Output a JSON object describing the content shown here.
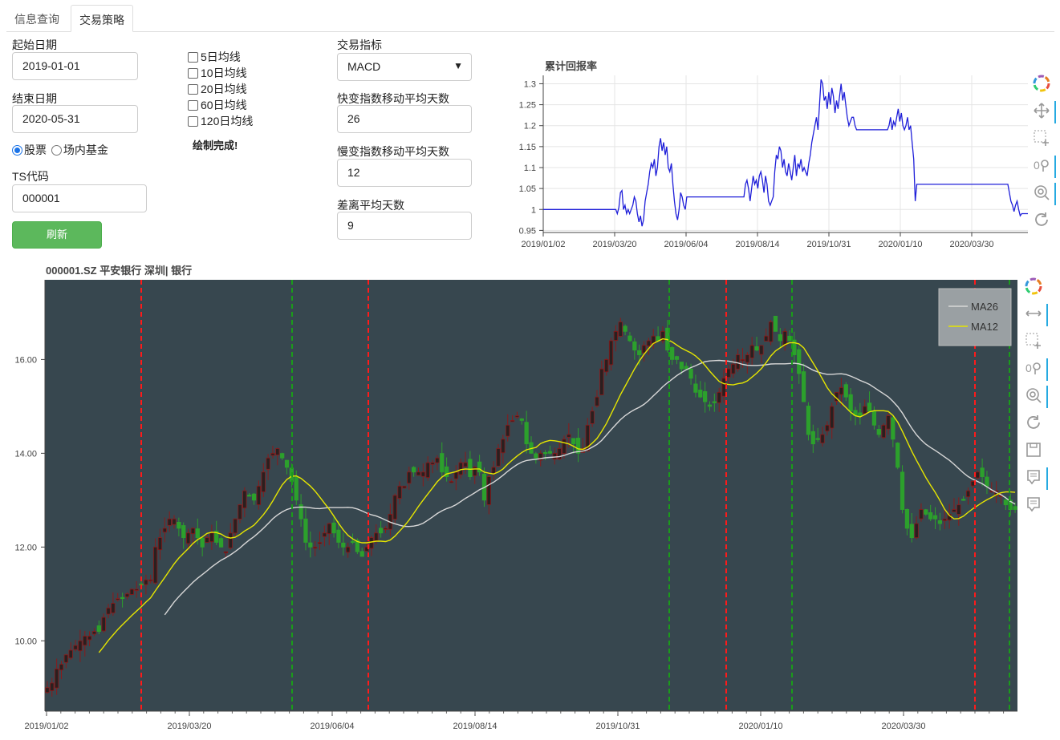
{
  "tabs": [
    {
      "label": "信息查询",
      "active": false
    },
    {
      "label": "交易策略",
      "active": true
    }
  ],
  "form": {
    "start_label": "起始日期",
    "start_value": "2019-01-01",
    "end_label": "结束日期",
    "end_value": "2020-05-31",
    "radio_stock": "股票",
    "radio_fund": "场内基金",
    "ts_label": "TS代码",
    "ts_value": "000001",
    "refresh_label": "刷新",
    "ma_checkboxes": [
      "5日均线",
      "10日均线",
      "20日均线",
      "60日均线",
      "120日均线"
    ],
    "status": "绘制完成!",
    "indicator_label": "交易指标",
    "indicator_value": "MACD",
    "fast_label": "快变指数移动平均天数",
    "fast_value": "26",
    "slow_label": "慢变指数移动平均天数",
    "slow_value": "12",
    "signal_label": "差离平均天数",
    "signal_value": "9"
  },
  "return_chart": {
    "title": "累计回报率"
  },
  "price_chart": {
    "title": "000001.SZ 平安银行 深圳| 银行",
    "legend": [
      "MA26",
      "MA12"
    ]
  },
  "colors": {
    "plot_bg": "#37474f",
    "up": "#8b1a1a",
    "down": "#2ca02c",
    "ma26": "#d8d8d8",
    "ma12": "#e6e600",
    "buy_line": "#ff1a1a",
    "sell_line": "#1a9c1a",
    "return_line": "#1f1fd9",
    "tool_blue": "#26aae1"
  },
  "icons": [
    "bokeh-logo-icon",
    "pan-icon",
    "box-zoom-icon",
    "wheel-zoom-icon",
    "reset-icon",
    "save-icon",
    "hover-icon"
  ],
  "chart_data": [
    {
      "type": "line",
      "title": "累计回报率",
      "x_ticks": [
        "2019/01/02",
        "2019/03/20",
        "2019/06/04",
        "2019/08/14",
        "2019/10/31",
        "2020/01/10",
        "2020/03/30"
      ],
      "y_ticks": [
        0.95,
        1,
        1.05,
        1.1,
        1.15,
        1.2,
        1.25,
        1.3
      ],
      "ylim": [
        0.945,
        1.32
      ],
      "grid": true,
      "series": [
        {
          "values": [
            1,
            1,
            1,
            1,
            1,
            1,
            1,
            1,
            1,
            1,
            1,
            1,
            1,
            1,
            1,
            1,
            1,
            1,
            1,
            1,
            1,
            1,
            1,
            1,
            1,
            1,
            1,
            1,
            1,
            1,
            1,
            1,
            1,
            1,
            1,
            1,
            1,
            1,
            1,
            1,
            1,
            1,
            1,
            1,
            1,
            1,
            1,
            1,
            0.99,
            1.005,
            1.04,
            1.045,
            1.0,
            1.01,
            0.99,
            1.0,
            0.99,
            1.0,
            1.01,
            1.03,
            1.02,
            0.99,
            0.97,
            0.985,
            0.96,
            0.975,
            1.02,
            1.04,
            1.06,
            1.09,
            1.11,
            1.1,
            1.12,
            1.08,
            1.1,
            1.15,
            1.17,
            1.14,
            1.16,
            1.13,
            1.15,
            1.1,
            1.09,
            1.11,
            1.06,
            1.02,
            0.99,
            0.975,
            1.0,
            1.04,
            1.03,
            1.01,
            1.0,
            1.03,
            1.03,
            1.03,
            1.03,
            1.03,
            1.03,
            1.03,
            1.03,
            1.03,
            1.03,
            1.03,
            1.03,
            1.03,
            1.03,
            1.03,
            1.03,
            1.03,
            1.03,
            1.03,
            1.03,
            1.03,
            1.03,
            1.03,
            1.03,
            1.03,
            1.03,
            1.03,
            1.03,
            1.03,
            1.03,
            1.03,
            1.03,
            1.03,
            1.03,
            1.03,
            1.03,
            1.03,
            1.03,
            1.06,
            1.07,
            1.05,
            1.02,
            1.05,
            1.08,
            1.06,
            1.07,
            1.05,
            1.08,
            1.09,
            1.07,
            1.04,
            1.08,
            1.06,
            1.02,
            1.01,
            1.02,
            1.03,
            1.09,
            1.13,
            1.12,
            1.15,
            1.14,
            1.1,
            1.12,
            1.09,
            1.08,
            1.11,
            1.09,
            1.07,
            1.1,
            1.13,
            1.08,
            1.11,
            1.1,
            1.12,
            1.09,
            1.1,
            1.09,
            1.08,
            1.11,
            1.13,
            1.16,
            1.18,
            1.2,
            1.22,
            1.19,
            1.25,
            1.31,
            1.3,
            1.26,
            1.27,
            1.24,
            1.28,
            1.25,
            1.29,
            1.27,
            1.23,
            1.26,
            1.24,
            1.27,
            1.3,
            1.26,
            1.28,
            1.25,
            1.22,
            1.2,
            1.21,
            1.22,
            1.22,
            1.2,
            1.19,
            1.19,
            1.19,
            1.19,
            1.19,
            1.19,
            1.19,
            1.19,
            1.19,
            1.19,
            1.19,
            1.19,
            1.19,
            1.19,
            1.19,
            1.19,
            1.19,
            1.19,
            1.19,
            1.19,
            1.19,
            1.2,
            1.22,
            1.19,
            1.21,
            1.2,
            1.22,
            1.24,
            1.21,
            1.23,
            1.2,
            1.19,
            1.2,
            1.22,
            1.19,
            1.2,
            1.16,
            1.12,
            1.02,
            1.06,
            1.06,
            1.06,
            1.06,
            1.06,
            1.06,
            1.06,
            1.06,
            1.06,
            1.06,
            1.06,
            1.06,
            1.06,
            1.06,
            1.06,
            1.06,
            1.06,
            1.06,
            1.06,
            1.06,
            1.06,
            1.06,
            1.06,
            1.06,
            1.06,
            1.06,
            1.06,
            1.06,
            1.06,
            1.06,
            1.06,
            1.06,
            1.06,
            1.06,
            1.06,
            1.06,
            1.06,
            1.06,
            1.06,
            1.06,
            1.06,
            1.06,
            1.06,
            1.06,
            1.06,
            1.06,
            1.06,
            1.06,
            1.06,
            1.06,
            1.06,
            1.06,
            1.06,
            1.06,
            1.06,
            1.06,
            1.06,
            1.06,
            1.06,
            1.06,
            1.04,
            1.02,
            1.01,
            0.995,
            1.01,
            1.02,
            1.0,
            0.985,
            0.99,
            0.99,
            0.99,
            0.99,
            0.99
          ]
        }
      ]
    },
    {
      "type": "candlestick",
      "title": "000001.SZ 平安银行 深圳| 银行",
      "x_ticks": [
        "2019/01/02",
        "2019/03/20",
        "2019/06/04",
        "2019/08/14",
        "2019/10/31",
        "2020/01/10",
        "2020/03/30"
      ],
      "y_ticks": [
        10.0,
        12.0,
        14.0,
        16.0
      ],
      "ylim": [
        8.5,
        17.7
      ],
      "series": [
        {
          "name": "close",
          "values": [
            9.0,
            9.1,
            9.4,
            9.5,
            9.7,
            9.8,
            9.9,
            10.0,
            10.1,
            10.1,
            10.2,
            10.2,
            10.5,
            10.7,
            10.8,
            10.9,
            10.9,
            11.0,
            11.1,
            11.1,
            11.2,
            11.3,
            11.3,
            12.0,
            12.2,
            12.4,
            12.6,
            12.6,
            12.4,
            12.2,
            12.3,
            12.4,
            12.2,
            12.0,
            12.2,
            12.3,
            12.1,
            12.0,
            11.9,
            12.3,
            12.6,
            12.9,
            13.2,
            13.1,
            13.0,
            13.3,
            13.6,
            13.9,
            14.0,
            14.1,
            13.9,
            13.7,
            13.4,
            13.0,
            12.6,
            12.1,
            12.0,
            12.0,
            12.1,
            12.3,
            12.5,
            12.3,
            12.1,
            12.0,
            12.0,
            12.1,
            11.9,
            11.8,
            12.0,
            12.2,
            12.3,
            12.3,
            12.4,
            12.7,
            13.1,
            13.3,
            13.3,
            13.6,
            13.6,
            13.6,
            13.6,
            13.8,
            13.8,
            13.9,
            13.6,
            13.5,
            13.4,
            13.6,
            13.8,
            13.8,
            13.5,
            13.7,
            13.6,
            13.0,
            13.5,
            13.7,
            14.1,
            14.3,
            14.6,
            14.7,
            14.8,
            14.7,
            14.2,
            14.0,
            13.9,
            14.0,
            14.0,
            14.0,
            14.0,
            14.1,
            14.3,
            14.4,
            14.2,
            14.0,
            14.1,
            14.6,
            14.9,
            15.2,
            15.8,
            16.0,
            16.4,
            16.6,
            16.8,
            16.6,
            16.4,
            16.2,
            16.1,
            16.3,
            16.4,
            16.5,
            16.4,
            16.6,
            16.2,
            16.0,
            16.0,
            15.8,
            15.8,
            15.6,
            15.3,
            15.2,
            15.1,
            15.0,
            15.1,
            15.3,
            15.6,
            15.8,
            15.9,
            16.1,
            16.0,
            16.1,
            16.3,
            16.2,
            16.3,
            16.5,
            16.8,
            16.6,
            16.4,
            16.6,
            16.4,
            16.1,
            15.7,
            15.1,
            14.4,
            14.2,
            14.3,
            14.4,
            14.6,
            15.0,
            15.3,
            15.4,
            15.2,
            14.9,
            14.8,
            14.8,
            15.0,
            14.9,
            14.6,
            14.4,
            14.6,
            14.8,
            14.3,
            13.7,
            12.8,
            12.4,
            12.2,
            12.5,
            12.8,
            12.7,
            12.6,
            12.6,
            12.5,
            12.6,
            12.7,
            12.8,
            12.9,
            13.0,
            13.2,
            13.4,
            13.6,
            13.5,
            13.3,
            13.2,
            13.2,
            13.1,
            12.9,
            12.8,
            12.8
          ]
        },
        {
          "name": "MA26"
        },
        {
          "name": "MA12"
        }
      ],
      "buy_markers": [
        "x≈176",
        "x≈459",
        "x≈905",
        "x≈1215"
      ],
      "sell_markers": [
        "x≈364",
        "x≈834",
        "x≈987",
        "x≈1258"
      ]
    }
  ]
}
